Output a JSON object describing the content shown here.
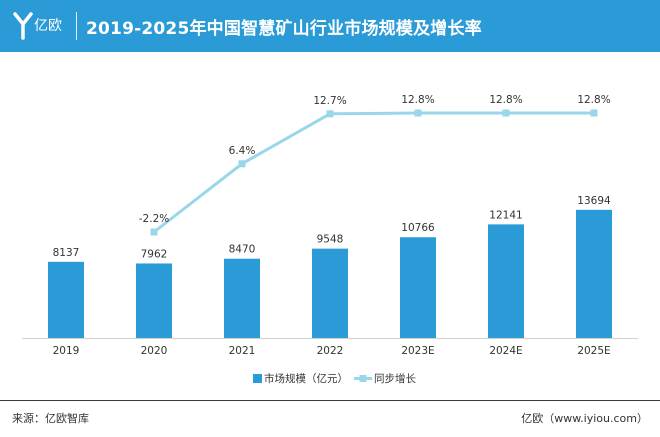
{
  "brand": {
    "name": "亿欧"
  },
  "header": {
    "title": "2019-2025年中国智慧矿山行业市场规模及增长率"
  },
  "footer": {
    "source": "来源：亿欧智库",
    "site": "亿欧（www.iyiou.com）"
  },
  "colors": {
    "bar": "#2a9bd6",
    "line": "#9ad6ea",
    "header": "#2a9bd6"
  },
  "chart_data": {
    "type": "bar",
    "title": "2019-2025年中国智慧矿山行业市场规模及增长率",
    "categories": [
      "2019",
      "2020",
      "2021",
      "2022",
      "2023E",
      "2024E",
      "2025E"
    ],
    "series": [
      {
        "name": "市场规模（亿元）",
        "type": "bar",
        "values": [
          8137,
          7962,
          8470,
          9548,
          10766,
          12141,
          13694
        ]
      },
      {
        "name": "同步增长",
        "type": "line",
        "values": [
          null,
          -2.2,
          6.4,
          12.7,
          12.8,
          12.8,
          12.8
        ],
        "labels": [
          "",
          "-2.2%",
          "6.4%",
          "12.7%",
          "12.8%",
          "12.8%",
          "12.8%"
        ]
      }
    ],
    "bar_ylim": [
      0,
      25000
    ],
    "line_ylim": [
      -5,
      14
    ],
    "legend": [
      "市场规模（亿元）",
      "同步增长"
    ],
    "legend_position": "bottom-center",
    "grid": false
  }
}
